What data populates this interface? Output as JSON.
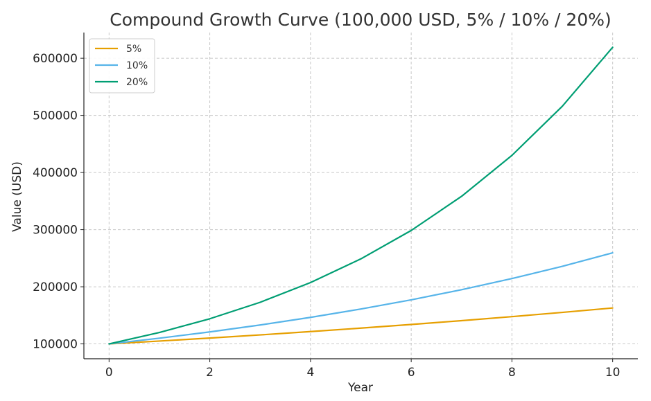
{
  "chart_data": {
    "type": "line",
    "title": "Compound Growth Curve (100,000 USD, 5% / 10% / 20%)",
    "xlabel": "Year",
    "ylabel": "Value (USD)",
    "x": [
      0,
      1,
      2,
      3,
      4,
      5,
      6,
      7,
      8,
      9,
      10
    ],
    "xlim": [
      -0.5,
      10.5
    ],
    "ylim": [
      74000,
      645000
    ],
    "xticks": [
      0,
      2,
      4,
      6,
      8,
      10
    ],
    "yticks": [
      100000,
      200000,
      300000,
      400000,
      500000,
      600000
    ],
    "grid": true,
    "legend_position": "top-left",
    "series": [
      {
        "name": "5%",
        "color": "#E69F00",
        "values": [
          100000,
          105000,
          110250,
          115763,
          121551,
          127628,
          134010,
          140710,
          147746,
          155133,
          162889
        ]
      },
      {
        "name": "10%",
        "color": "#56B4E9",
        "values": [
          100000,
          110000,
          121000,
          133100,
          146410,
          161051,
          177156,
          194872,
          214359,
          235795,
          259374
        ]
      },
      {
        "name": "20%",
        "color": "#009E73",
        "values": [
          100000,
          120000,
          144000,
          172800,
          207360,
          248832,
          298598,
          358318,
          429982,
          515978,
          619174
        ]
      }
    ]
  }
}
